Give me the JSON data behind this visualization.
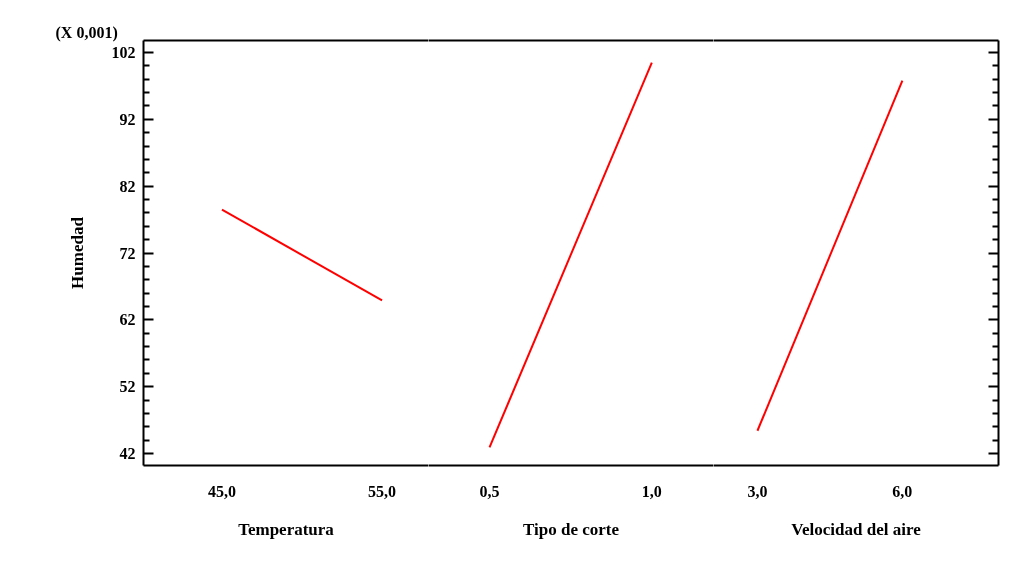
{
  "chart_data": [
    {
      "type": "line",
      "ylabel": "Humedad",
      "annotations": [
        "(X 0,001)"
      ],
      "xlabel": "Temperatura",
      "xlim": [
        40.1,
        57.9
      ],
      "xticks": [
        {
          "value": 45,
          "label": "45,0"
        },
        {
          "value": 55,
          "label": "55,0"
        }
      ],
      "ylim": [
        40.2,
        103.8
      ],
      "yticks": [
        42,
        52,
        62,
        72,
        82,
        92,
        102
      ],
      "series": [
        {
          "color": "#ff0000",
          "x": [
            45,
            55
          ],
          "values": [
            78.5,
            64.9
          ]
        }
      ]
    },
    {
      "type": "line",
      "xlabel": "Tipo de corte",
      "xlim": [
        0.312,
        1.19
      ],
      "xticks": [
        {
          "value": 0.5,
          "label": "0,5"
        },
        {
          "value": 1.0,
          "label": "1,0"
        }
      ],
      "ylim": [
        40.2,
        103.8
      ],
      "yticks": [
        42,
        52,
        62,
        72,
        82,
        92,
        102
      ],
      "tick_labels": "x",
      "series": [
        {
          "color": "#ff0000",
          "x": [
            0.5,
            1.0
          ],
          "values": [
            42.9,
            100.5
          ]
        }
      ]
    },
    {
      "type": "line",
      "xlabel": "Velocidad del aire",
      "xlim": [
        2.09,
        7.99
      ],
      "xticks": [
        {
          "value": 3,
          "label": "3,0"
        },
        {
          "value": 6,
          "label": "6,0"
        }
      ],
      "ylim": [
        40.2,
        103.8
      ],
      "yticks": [
        42,
        52,
        62,
        72,
        82,
        92,
        102
      ],
      "tick_labels": "x",
      "series": [
        {
          "color": "#ff0000",
          "x": [
            3,
            6
          ],
          "values": [
            45.4,
            97.8
          ]
        }
      ]
    }
  ]
}
